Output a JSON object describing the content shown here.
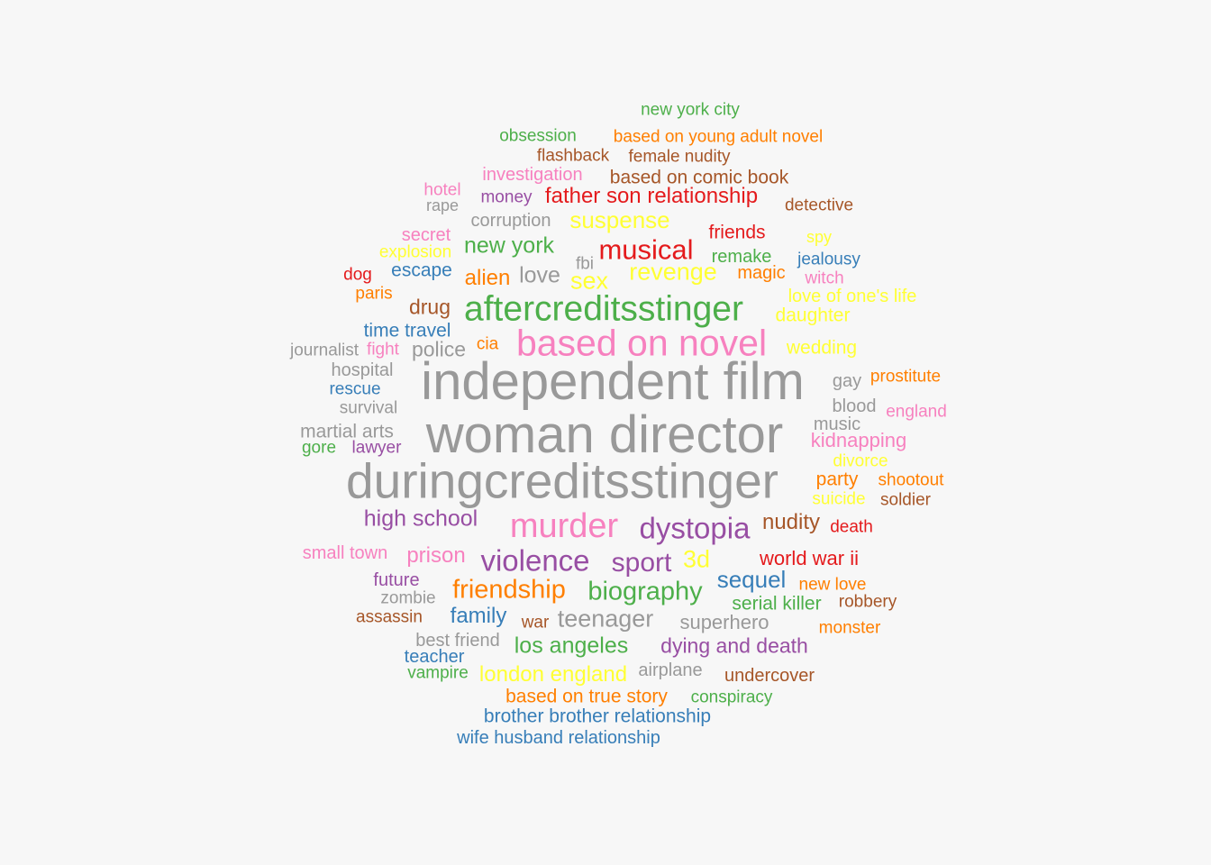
{
  "palette": {
    "gray": "#999999",
    "pink": "#f781bf",
    "green": "#4daf4a",
    "red": "#e41a1c",
    "purple": "#984ea3",
    "orange": "#ff7f00",
    "yellow": "#ffff33",
    "brown": "#a65628",
    "blue": "#377eb8",
    "background": "#f7f7f7"
  },
  "words": [
    {
      "text": "new york city",
      "color": "green",
      "weight": 1
    },
    {
      "text": "obsession",
      "color": "green",
      "weight": 1
    },
    {
      "text": "based on young adult novel",
      "color": "orange",
      "weight": 1
    },
    {
      "text": "flashback",
      "color": "brown",
      "weight": 1
    },
    {
      "text": "female nudity",
      "color": "brown",
      "weight": 1
    },
    {
      "text": "investigation",
      "color": "pink",
      "weight": 1.1
    },
    {
      "text": "based on comic book",
      "color": "brown",
      "weight": 1.2
    },
    {
      "text": "hotel",
      "color": "pink",
      "weight": 1
    },
    {
      "text": "money",
      "color": "purple",
      "weight": 1
    },
    {
      "text": "father son relationship",
      "color": "red",
      "weight": 1.3
    },
    {
      "text": "rape",
      "color": "gray",
      "weight": 1
    },
    {
      "text": "detective",
      "color": "brown",
      "weight": 1
    },
    {
      "text": "corruption",
      "color": "gray",
      "weight": 1.1
    },
    {
      "text": "suspense",
      "color": "yellow",
      "weight": 1.4
    },
    {
      "text": "secret",
      "color": "pink",
      "weight": 1.1
    },
    {
      "text": "friends",
      "color": "red",
      "weight": 1.1
    },
    {
      "text": "spy",
      "color": "yellow",
      "weight": 1
    },
    {
      "text": "explosion",
      "color": "yellow",
      "weight": 1
    },
    {
      "text": "new york",
      "color": "green",
      "weight": 1.4
    },
    {
      "text": "musical",
      "color": "red",
      "weight": 1.8
    },
    {
      "text": "remake",
      "color": "green",
      "weight": 1.1
    },
    {
      "text": "jealousy",
      "color": "blue",
      "weight": 1
    },
    {
      "text": "fbi",
      "color": "gray",
      "weight": 1
    },
    {
      "text": "dog",
      "color": "red",
      "weight": 1
    },
    {
      "text": "escape",
      "color": "blue",
      "weight": 1.1
    },
    {
      "text": "alien",
      "color": "orange",
      "weight": 1.3
    },
    {
      "text": "love",
      "color": "gray",
      "weight": 1.4
    },
    {
      "text": "revenge",
      "color": "yellow",
      "weight": 1.5
    },
    {
      "text": "magic",
      "color": "orange",
      "weight": 1.1
    },
    {
      "text": "witch",
      "color": "pink",
      "weight": 1
    },
    {
      "text": "sex",
      "color": "yellow",
      "weight": 1.5
    },
    {
      "text": "paris",
      "color": "orange",
      "weight": 1
    },
    {
      "text": "love of one's life",
      "color": "yellow",
      "weight": 1
    },
    {
      "text": "drug",
      "color": "brown",
      "weight": 1.2
    },
    {
      "text": "aftercreditsstinger",
      "color": "green",
      "weight": 2.4
    },
    {
      "text": "daughter",
      "color": "yellow",
      "weight": 1.1
    },
    {
      "text": "time travel",
      "color": "blue",
      "weight": 1.1
    },
    {
      "text": "journalist",
      "color": "gray",
      "weight": 1
    },
    {
      "text": "fight",
      "color": "pink",
      "weight": 1
    },
    {
      "text": "police",
      "color": "gray",
      "weight": 1.3
    },
    {
      "text": "cia",
      "color": "orange",
      "weight": 1
    },
    {
      "text": "based on novel",
      "color": "pink",
      "weight": 2.4
    },
    {
      "text": "wedding",
      "color": "yellow",
      "weight": 1.1
    },
    {
      "text": "hospital",
      "color": "gray",
      "weight": 1.1
    },
    {
      "text": "independent film",
      "color": "gray",
      "weight": 3.7
    },
    {
      "text": "gay",
      "color": "gray",
      "weight": 1.1
    },
    {
      "text": "prostitute",
      "color": "orange",
      "weight": 1
    },
    {
      "text": "rescue",
      "color": "blue",
      "weight": 1
    },
    {
      "text": "survival",
      "color": "gray",
      "weight": 1
    },
    {
      "text": "blood",
      "color": "gray",
      "weight": 1.1
    },
    {
      "text": "england",
      "color": "pink",
      "weight": 1
    },
    {
      "text": "woman director",
      "color": "gray",
      "weight": 3.7
    },
    {
      "text": "martial arts",
      "color": "gray",
      "weight": 1.1
    },
    {
      "text": "music",
      "color": "gray",
      "weight": 1.1
    },
    {
      "text": "gore",
      "color": "green",
      "weight": 1
    },
    {
      "text": "lawyer",
      "color": "purple",
      "weight": 1
    },
    {
      "text": "kidnapping",
      "color": "pink",
      "weight": 1.2
    },
    {
      "text": "divorce",
      "color": "yellow",
      "weight": 1
    },
    {
      "text": "duringcreditsstinger",
      "color": "gray",
      "weight": 3.5
    },
    {
      "text": "party",
      "color": "orange",
      "weight": 1.1
    },
    {
      "text": "shootout",
      "color": "orange",
      "weight": 1.1
    },
    {
      "text": "suicide",
      "color": "yellow",
      "weight": 1
    },
    {
      "text": "soldier",
      "color": "brown",
      "weight": 1
    },
    {
      "text": "high school",
      "color": "purple",
      "weight": 1.4
    },
    {
      "text": "murder",
      "color": "pink",
      "weight": 2.3
    },
    {
      "text": "dystopia",
      "color": "purple",
      "weight": 2.0
    },
    {
      "text": "nudity",
      "color": "brown",
      "weight": 1.3
    },
    {
      "text": "death",
      "color": "red",
      "weight": 1
    },
    {
      "text": "small town",
      "color": "pink",
      "weight": 1.1
    },
    {
      "text": "prison",
      "color": "pink",
      "weight": 1.3
    },
    {
      "text": "violence",
      "color": "purple",
      "weight": 2.0
    },
    {
      "text": "sport",
      "color": "purple",
      "weight": 1.7
    },
    {
      "text": "3d",
      "color": "yellow",
      "weight": 1.5
    },
    {
      "text": "world war ii",
      "color": "red",
      "weight": 1.3
    },
    {
      "text": "future",
      "color": "purple",
      "weight": 1.1
    },
    {
      "text": "zombie",
      "color": "gray",
      "weight": 1.1
    },
    {
      "text": "friendship",
      "color": "orange",
      "weight": 1.7
    },
    {
      "text": "biography",
      "color": "green",
      "weight": 1.7
    },
    {
      "text": "sequel",
      "color": "blue",
      "weight": 1.6
    },
    {
      "text": "new love",
      "color": "orange",
      "weight": 1
    },
    {
      "text": "serial killer",
      "color": "green",
      "weight": 1.1
    },
    {
      "text": "robbery",
      "color": "brown",
      "weight": 1
    },
    {
      "text": "assassin",
      "color": "brown",
      "weight": 1
    },
    {
      "text": "family",
      "color": "blue",
      "weight": 1.4
    },
    {
      "text": "war",
      "color": "brown",
      "weight": 1
    },
    {
      "text": "teenager",
      "color": "gray",
      "weight": 1.5
    },
    {
      "text": "superhero",
      "color": "gray",
      "weight": 1.3
    },
    {
      "text": "monster",
      "color": "orange",
      "weight": 1
    },
    {
      "text": "best friend",
      "color": "gray",
      "weight": 1.1
    },
    {
      "text": "los angeles",
      "color": "green",
      "weight": 1.4
    },
    {
      "text": "dying and death",
      "color": "purple",
      "weight": 1.3
    },
    {
      "text": "teacher",
      "color": "blue",
      "weight": 1.1
    },
    {
      "text": "vampire",
      "color": "green",
      "weight": 1
    },
    {
      "text": "london england",
      "color": "yellow",
      "weight": 1.3
    },
    {
      "text": "airplane",
      "color": "gray",
      "weight": 1.1
    },
    {
      "text": "undercover",
      "color": "brown",
      "weight": 1.1
    },
    {
      "text": "based on true story",
      "color": "orange",
      "weight": 1.2
    },
    {
      "text": "conspiracy",
      "color": "green",
      "weight": 1
    },
    {
      "text": "brother brother relationship",
      "color": "blue",
      "weight": 1.1
    },
    {
      "text": "wife husband relationship",
      "color": "blue",
      "weight": 1.1
    }
  ]
}
